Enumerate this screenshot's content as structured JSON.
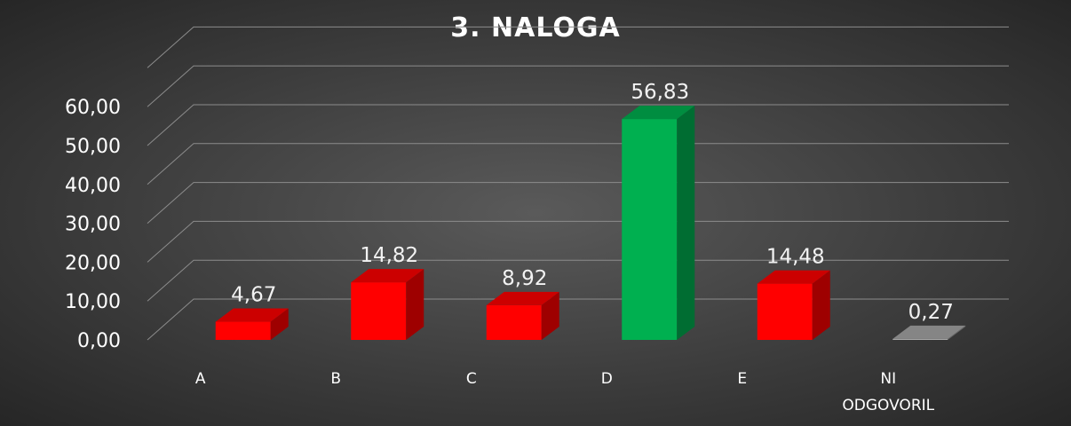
{
  "chart_data": {
    "type": "bar",
    "title": "3. NALOGA",
    "categories": [
      [
        "A"
      ],
      [
        "B"
      ],
      [
        "C"
      ],
      [
        "D"
      ],
      [
        "E"
      ],
      [
        "NI",
        "ODGOVORIL"
      ]
    ],
    "values": [
      4.67,
      14.82,
      8.92,
      56.83,
      14.48,
      0.27
    ],
    "value_labels": [
      "4,67",
      "14,82",
      "8,92",
      "56,83",
      "14,48",
      "0,27"
    ],
    "bar_colors": [
      "#ff0000",
      "#ff0000",
      "#ff0000",
      "#00b050",
      "#ff0000",
      "#a6a6a6"
    ],
    "yticks": [
      "0,00",
      "10,00",
      "20,00",
      "30,00",
      "40,00",
      "50,00",
      "60,00"
    ],
    "ylim": [
      0,
      60
    ],
    "grid": true,
    "style_3d": true,
    "legend": "none",
    "xlabel": "",
    "ylabel": ""
  }
}
